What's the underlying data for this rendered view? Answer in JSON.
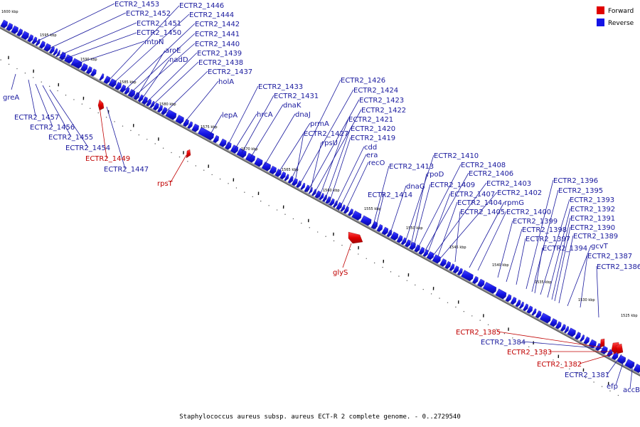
{
  "caption": "Staphylococcus aureus subsp. aureus ECT-R 2 complete genome. - 0..2729540",
  "legend": [
    {
      "label": "Forward",
      "color": "#e00000"
    },
    {
      "label": "Reverse",
      "color": "#1414e6"
    }
  ],
  "colors": {
    "forward": "#e00000",
    "reverse": "#1414e6",
    "forward_label": "#c00000",
    "reverse_label": "#1a1a9e"
  },
  "ticks": [
    "1600 kbp",
    "1595 kbp",
    "1590 kbp",
    "1585 kbp",
    "1580 kbp",
    "1575 kbp",
    "1570 kbp",
    "1565 kbp",
    "1560 kbp",
    "1555 kbp",
    "1550 kbp",
    "1545 kbp",
    "1540 kbp",
    "1535 kbp",
    "1530 kbp",
    "1525 kbp"
  ],
  "labels": [
    "ECTR2_1453",
    "ECTR2_1452",
    "ECTR2_1451",
    "ECTR2_1450",
    "mtnN",
    "ECTR2_1446",
    "ECTR2_1444",
    "ECTR2_1442",
    "ECTR2_1441",
    "ECTR2_1440",
    "aroE",
    "nadD",
    "ECTR2_1439",
    "ECTR2_1438",
    "ECTR2_1437",
    "holA",
    "ECTR2_1433",
    "ECTR2_1431",
    "dnaK",
    "hrcA",
    "dnaJ",
    "lepA",
    "prmA",
    "ECTR2_1426",
    "ECTR2_1424",
    "ECTR2_1423",
    "ECTR2_1422",
    "ECTR2_1421",
    "ECTR2_1427",
    "ECTR2_1420",
    "ECTR2_1419",
    "rpsU",
    "cdd",
    "era",
    "recO",
    "ECTR2_1413",
    "dnaG",
    "ECTR2_1414",
    "ECTR2_1410",
    "ECTR2_1408",
    "rpoD",
    "ECTR2_1406",
    "ECTR2_1409",
    "ECTR2_1403",
    "ECTR2_1407",
    "ECTR2_1402",
    "ECTR2_1404",
    "rpmG",
    "ECTR2_1405",
    "ECTR2_1400",
    "ECTR2_1399",
    "ECTR2_1398",
    "ECTR2_1397",
    "ECTR2_1394",
    "ECTR2_1396",
    "ECTR2_1395",
    "ECTR2_1393",
    "ECTR2_1392",
    "ECTR2_1391",
    "ECTR2_1390",
    "ECTR2_1389",
    "gcvT",
    "ECTR2_1387",
    "ECTR2_1386",
    "greA",
    "ECTR2_1457",
    "ECTR2_1456",
    "ECTR2_1455",
    "ECTR2_1454",
    "ECTR2_1449",
    "ECTR2_1447",
    "rpsT",
    "glyS",
    "ECTR2_1385",
    "ECTR2_1384",
    "ECTR2_1383",
    "ECTR2_1382",
    "ECTR2_1381",
    "efp",
    "accB"
  ],
  "forward_labels": [
    "ECTR2_1449",
    "rpsT",
    "glyS",
    "ECTR2_1385",
    "ECTR2_1383",
    "ECTR2_1382"
  ]
}
